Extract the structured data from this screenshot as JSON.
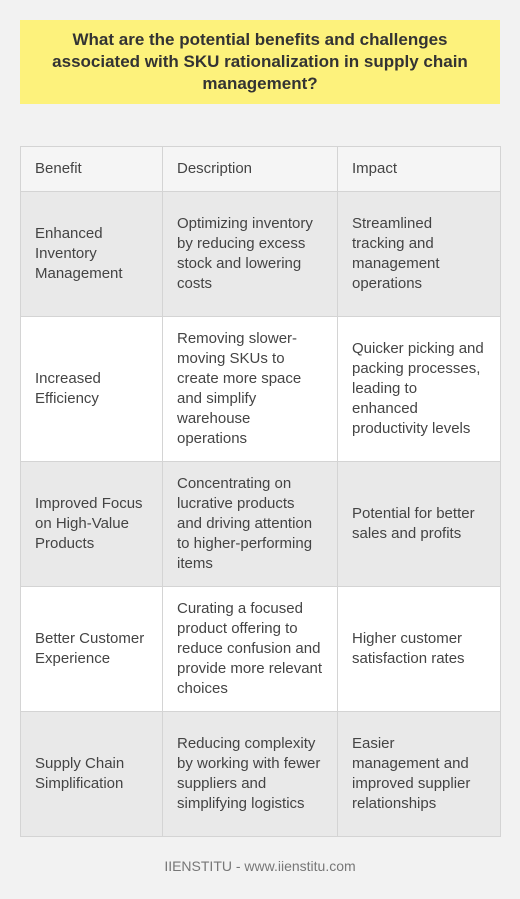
{
  "title": "What are the potential benefits and challenges associated with SKU rationalization in supply chain management?",
  "headers": [
    "Benefit",
    "Description",
    "Impact"
  ],
  "rows": [
    {
      "benefit": "Enhanced Inventory Management",
      "description": "Optimizing inventory by reducing excess stock and lowering costs",
      "impact": "Streamlined tracking and management operations"
    },
    {
      "benefit": "Increased Efficiency",
      "description": "Removing slower-moving SKUs to create more space and simplify warehouse operations",
      "impact": "Quicker picking and packing processes, leading to enhanced productivity levels"
    },
    {
      "benefit": "Improved Focus on High-Value Products",
      "description": "Concentrating on lucrative products and driving attention to higher-performing items",
      "impact": "Potential for better sales and profits"
    },
    {
      "benefit": "Better Customer Experience",
      "description": "Curating a focused product offering to reduce confusion and provide more relevant choices",
      "impact": "Higher customer satisfaction rates"
    },
    {
      "benefit": "Supply Chain Simplification",
      "description": "Reducing complexity by working with fewer suppliers and simplifying logistics",
      "impact": "Easier management and improved supplier relationships"
    }
  ],
  "footer": "IIENSTITU - www.iienstitu.com"
}
